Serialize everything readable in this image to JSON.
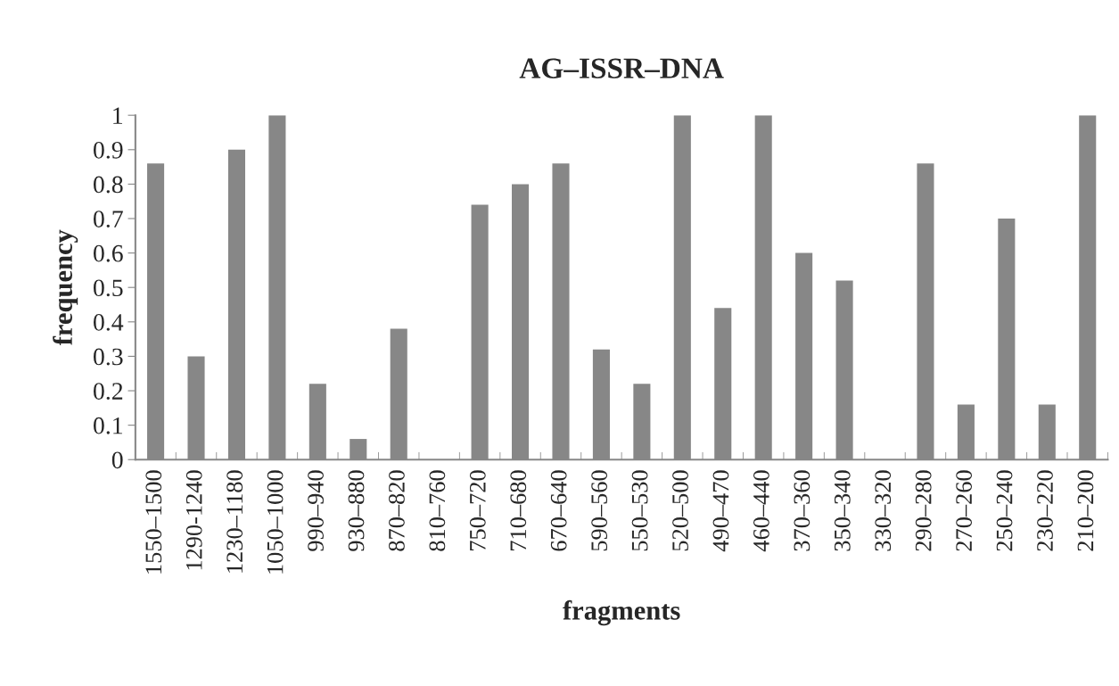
{
  "chart_data": {
    "type": "bar",
    "title": "AG–ISSR–DNA",
    "xlabel": "fragments",
    "ylabel": "frequency",
    "categories": [
      "1550–1500",
      "1290-1240",
      "1230–1180",
      "1050–1000",
      "990–940",
      "930–880",
      "870–820",
      "810–760",
      "750–720",
      "710–680",
      "670–640",
      "590–560",
      "550–530",
      "520–500",
      "490–470",
      "460–440",
      "370–360",
      "350–340",
      "330–320",
      "290–280",
      "270–260",
      "250–240",
      "230–220",
      "210–200"
    ],
    "values": [
      0.86,
      0.3,
      0.9,
      1,
      0.22,
      0.06,
      0.38,
      0,
      0.74,
      0.8,
      0.86,
      0.32,
      0.22,
      1,
      0.44,
      1,
      0.6,
      0.52,
      0,
      0.86,
      0.16,
      0.7,
      0.16,
      1
    ],
    "color": "#878787",
    "ylim": [
      0,
      1
    ],
    "yticks": [
      0,
      0.1,
      0.2,
      0.3,
      0.4,
      0.5,
      0.6,
      0.7,
      0.8,
      0.9,
      1
    ],
    "grid": false,
    "legend": false
  }
}
